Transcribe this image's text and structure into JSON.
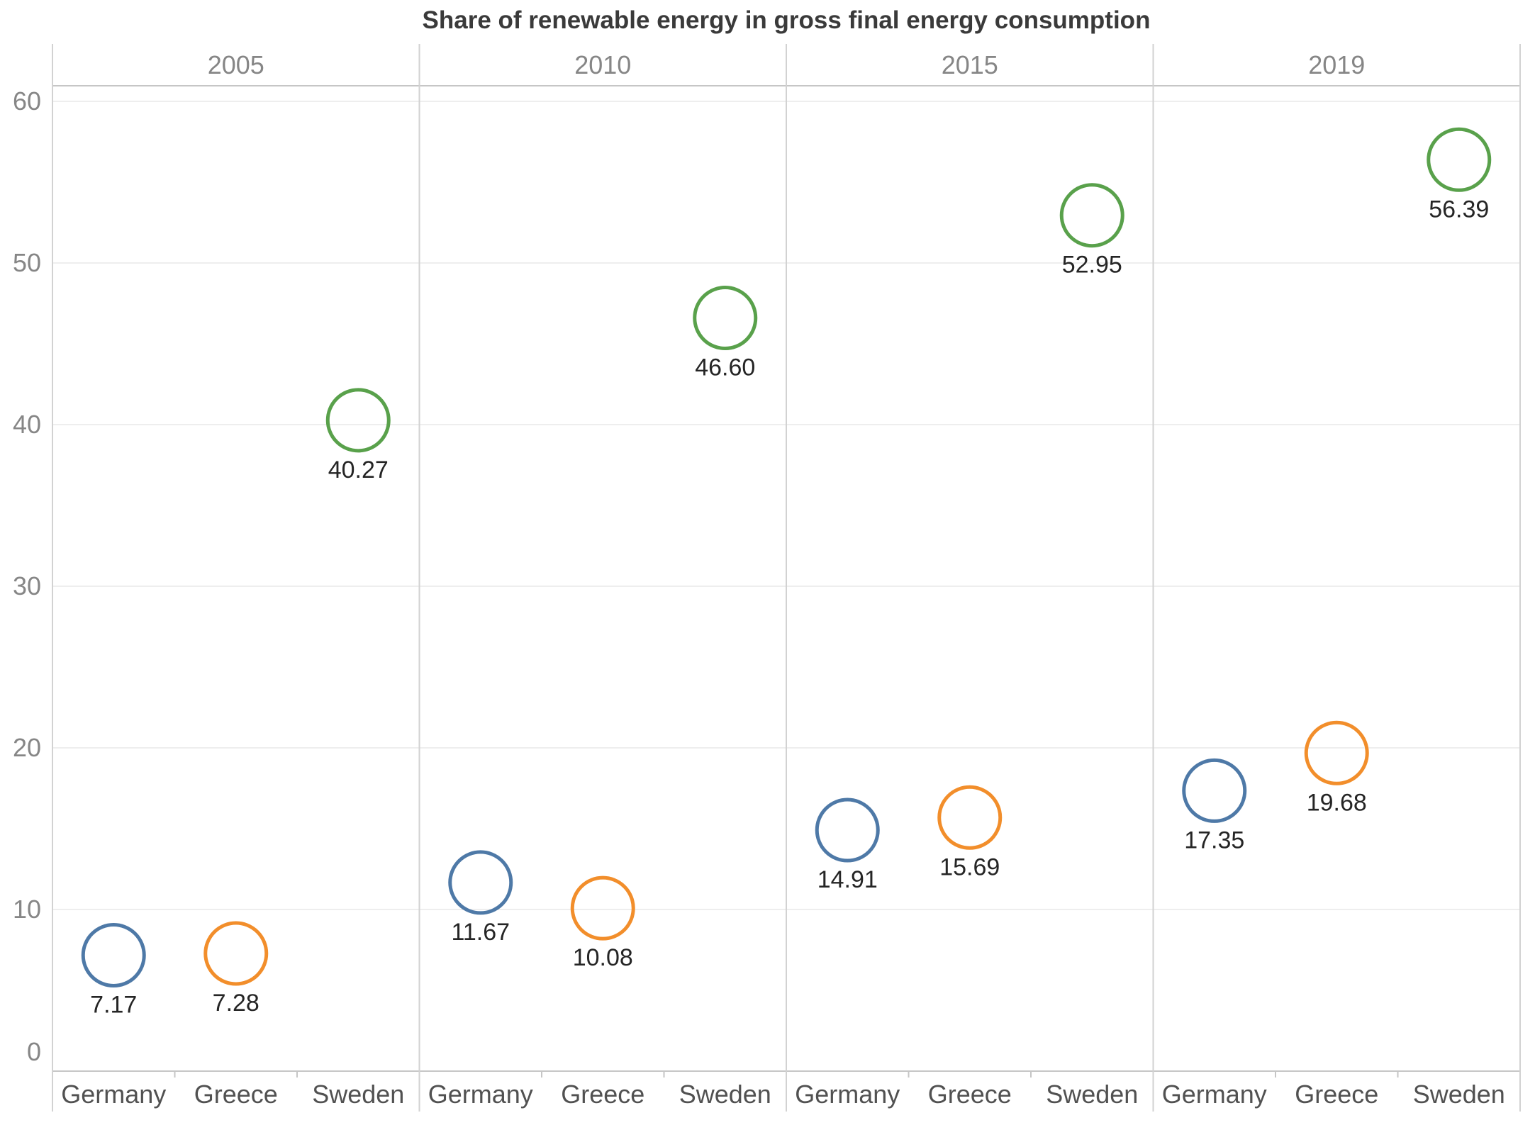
{
  "chart_data": {
    "type": "scatter",
    "title": "Share of renewable energy in gross final energy consumption",
    "panels": [
      "2005",
      "2010",
      "2015",
      "2019"
    ],
    "categories": [
      "Germany",
      "Greece",
      "Sweden"
    ],
    "series": [
      {
        "name": "Germany",
        "color": "#4E79A7",
        "values": [
          7.17,
          11.67,
          14.91,
          17.35
        ]
      },
      {
        "name": "Greece",
        "color": "#F28E2B",
        "values": [
          7.28,
          10.08,
          15.69,
          19.68
        ]
      },
      {
        "name": "Sweden",
        "color": "#59A14B",
        "values": [
          40.27,
          46.6,
          52.95,
          56.39
        ]
      }
    ],
    "value_labels": [
      "7.17",
      "7.28",
      "40.27",
      "11.67",
      "10.08",
      "46.60",
      "14.91",
      "15.69",
      "52.95",
      "17.35",
      "19.68",
      "56.39"
    ],
    "value_label_position": "below-marker",
    "marker_style": "open-circle",
    "yticks": [
      "0",
      "10",
      "20",
      "30",
      "40",
      "50",
      "60"
    ],
    "ylim": [
      0,
      63.5
    ],
    "grid": true,
    "legend_position": "none",
    "colors": {
      "germany": "#4E79A7",
      "greece": "#F28E2B",
      "sweden": "#59A14B",
      "gridline": "#e9e9e9",
      "frame": "#c6c6c6",
      "separator": "#d2d2d2",
      "tick_text": "#868686",
      "header_text": "#868686",
      "category_text": "#515151",
      "value_text": "#252525",
      "title_text": "#3a3a3a",
      "background": "#ffffff"
    }
  }
}
